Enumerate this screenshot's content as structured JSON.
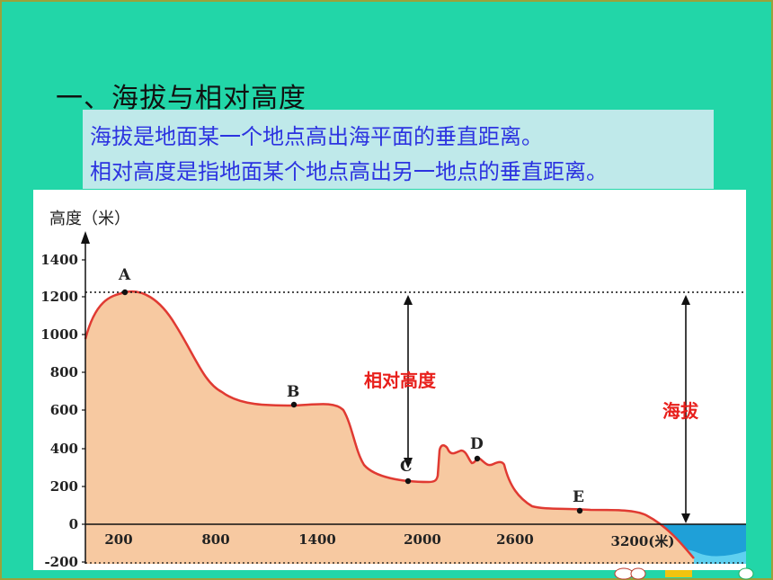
{
  "heading": "一、海拔与相对高度",
  "definitions": {
    "altitude": "海拔是地面某一个地点高出海平面的垂直距离。",
    "relative_height": "相对高度是指地面某个地点高出另一地点的垂直距离。"
  },
  "colors": {
    "background": "#22d6a8",
    "definition_box": "#bfe9ea",
    "definition_text": "#2c33e0",
    "terrain_fill": "#f7c9a1",
    "terrain_line": "#e03a32",
    "sea": "#1fa0d8",
    "annotation": "#e8201c"
  },
  "chart": {
    "y_axis_label": "高度（米）",
    "y_ticks": [
      "1400",
      "1200",
      "1000",
      "800",
      "600",
      "400",
      "200",
      "0",
      "-200"
    ],
    "x_ticks": [
      "200",
      "800",
      "1400",
      "2000",
      "2600",
      "3200(米)"
    ],
    "points": [
      {
        "label": "A",
        "x": 230,
        "y": 1225
      },
      {
        "label": "B",
        "x": 1300,
        "y": 630
      },
      {
        "label": "C",
        "x": 1920,
        "y": 225
      },
      {
        "label": "D",
        "x": 2340,
        "y": 345
      },
      {
        "label": "E",
        "x": 3000,
        "y": 70
      }
    ],
    "relative_height_label": "相对高度",
    "altitude_label": "海拔",
    "reference_level": 1225,
    "icons": [
      "arrow-up-icon",
      "dotted-line"
    ]
  }
}
